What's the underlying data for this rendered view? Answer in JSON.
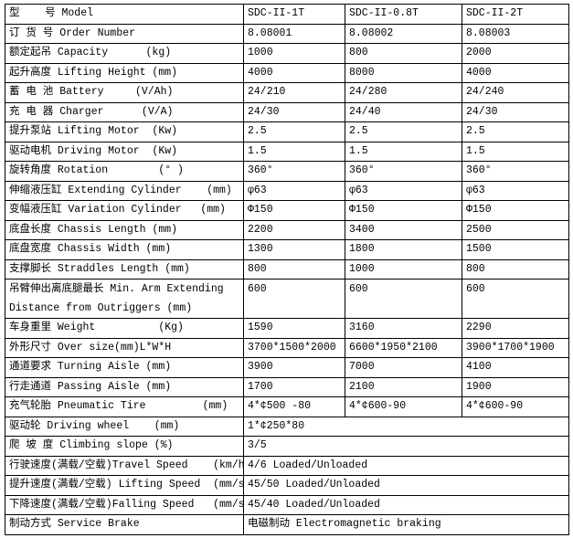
{
  "rows": [
    {
      "label": "型    号 Model",
      "values": [
        "SDC-II-1T",
        "SDC-II-0.8T",
        "SDC-II-2T"
      ]
    },
    {
      "label": "订 货 号 Order Number",
      "values": [
        "8.08001",
        "8.08002",
        "8.08003"
      ]
    },
    {
      "label": "额定起吊 Capacity      (kg)",
      "values": [
        "1000",
        "800",
        "2000"
      ]
    },
    {
      "label": "起升高度 Lifting Height (mm)",
      "values": [
        "4000",
        "8000",
        "4000"
      ]
    },
    {
      "label": "蓄 电 池 Battery     (V/Ah)",
      "values": [
        "24/210",
        "24/280",
        "24/240"
      ]
    },
    {
      "label": "充 电 器 Charger      (V/A)",
      "values": [
        "24/30",
        "24/40",
        "24/30"
      ]
    },
    {
      "label": "提升泵站 Lifting Motor  (Kw)",
      "values": [
        "2.5",
        "2.5",
        "2.5"
      ]
    },
    {
      "label": "驱动电机 Driving Motor  (Kw)",
      "values": [
        "1.5",
        "1.5",
        "1.5"
      ]
    },
    {
      "label": "旋转角度 Rotation        (° )",
      "values": [
        "360°",
        "360°",
        "360°"
      ]
    },
    {
      "label": "伸缩液压缸 Extending Cylinder    (mm)",
      "values": [
        "φ63",
        "φ63",
        "φ63"
      ]
    },
    {
      "label": "变幅液压缸 Variation Cylinder   (mm)",
      "values": [
        "Φ150",
        "Φ150",
        "Φ150"
      ]
    },
    {
      "label": "底盘长度 Chassis Length (mm)",
      "values": [
        "2200",
        "3400",
        "2500"
      ]
    },
    {
      "label": "底盘宽度 Chassis Width (mm)",
      "values": [
        "1300",
        "1800",
        "1500"
      ]
    },
    {
      "label": "支撑脚长 Straddles Length (mm)",
      "values": [
        "800",
        "1000",
        "800"
      ]
    },
    {
      "label": "吊臂伸出离底腿最长 Min. Arm Extending Distance from Outriggers (mm)",
      "values": [
        "600",
        "600",
        "600"
      ]
    },
    {
      "label": "车身重里 Weight          (Kg)",
      "values": [
        "1590",
        "3160",
        "2290"
      ]
    },
    {
      "label": "外形尺寸 Over size(mm)L*W*H",
      "values": [
        "3700*1500*2000",
        "6600*1950*2100",
        "3900*1700*1900"
      ]
    },
    {
      "label": "通道要求 Turning Aisle (mm)",
      "values": [
        "3900",
        "7000",
        "4100"
      ]
    },
    {
      "label": "行走通道 Passing Aisle (mm)",
      "values": [
        "1700",
        "2100",
        "1900"
      ]
    },
    {
      "label": "充气轮胎 Pneumatic Tire         (mm)",
      "values": [
        "4*¢500 -80",
        "4*¢600-90",
        "4*¢600-90"
      ]
    }
  ],
  "merged_rows": [
    {
      "label": "驱动轮 Driving wheel    (mm)",
      "value": "1*¢250*80"
    },
    {
      "label": "爬 坡 度 Climbing slope (%)",
      "value": "3/5"
    },
    {
      "label": "行驶速度(满载/空载)Travel Speed    (km/h)",
      "value": "4/6 Loaded/Unloaded"
    },
    {
      "label": "提升速度(满载/空载) Lifting Speed  (mm/s)",
      "value": "45/50 Loaded/Unloaded"
    },
    {
      "label": "下降速度(满载/空载)Falling Speed   (mm/s)",
      "value": "45/40 Loaded/Unloaded"
    },
    {
      "label": "制动方式 Service Brake",
      "value": "电磁制动 Electromagnetic braking"
    }
  ]
}
